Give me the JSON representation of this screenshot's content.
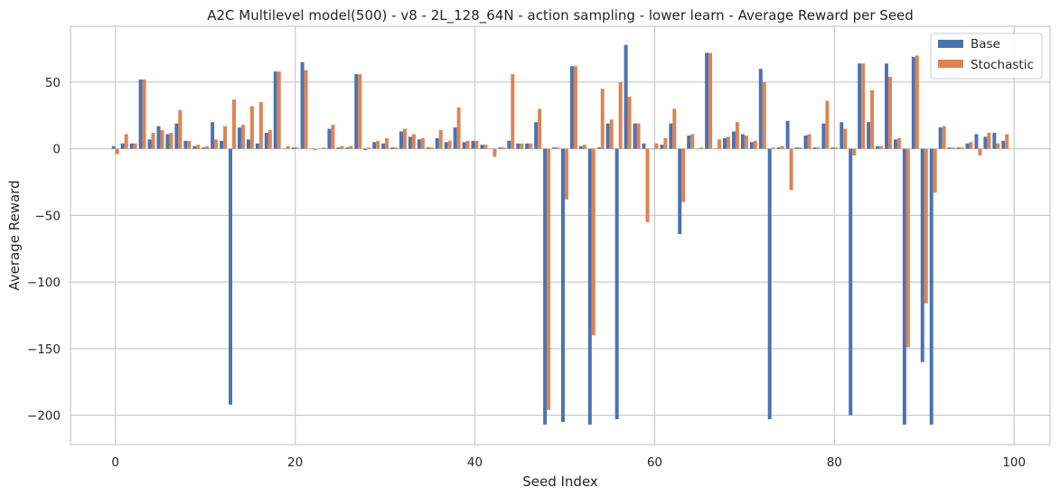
{
  "chart_data": {
    "type": "bar",
    "title": "A2C Multilevel model(500) - v8 - 2L_128_64N - action sampling - lower learn - Average Reward per Seed",
    "xlabel": "Seed Index",
    "ylabel": "Average Reward",
    "xlim": [
      -5,
      104
    ],
    "ylim": [
      -222,
      92
    ],
    "xticks": [
      0,
      20,
      40,
      60,
      80,
      100
    ],
    "yticks": [
      -200,
      -150,
      -100,
      -50,
      0,
      50
    ],
    "grid": true,
    "legend_position": "top-right",
    "colors": {
      "Base": "#4c72b0",
      "Stochastic": "#dd8452"
    },
    "series": [
      {
        "name": "Base",
        "values": [
          2,
          4,
          4,
          52,
          7,
          17,
          11,
          19,
          6,
          2,
          1,
          20,
          6,
          -192,
          16,
          7,
          4,
          12,
          58,
          0,
          1,
          65,
          0,
          0,
          15,
          1,
          1,
          56,
          -1,
          5,
          4,
          1,
          13,
          9,
          7,
          1,
          8,
          5,
          16,
          5,
          6,
          3,
          0,
          1,
          6,
          4,
          4,
          20,
          -207,
          1,
          -205,
          62,
          2,
          -207,
          1,
          19,
          -203,
          78,
          19,
          4,
          0,
          3,
          19,
          -64,
          10,
          0,
          72,
          0,
          8,
          13,
          11,
          5,
          60,
          -203,
          1,
          21,
          1,
          10,
          1,
          19,
          1,
          20,
          -200,
          64,
          20,
          2,
          64,
          7,
          -207,
          69,
          -160,
          -207,
          16,
          1,
          1,
          4,
          11,
          9,
          12,
          6
        ],
        "_c": [
          "0",
          "1",
          "2",
          "3",
          "4",
          "5",
          "6",
          "7",
          "8",
          "9",
          "10",
          "11",
          "12",
          "13",
          "14",
          "15",
          "16",
          "17",
          "18",
          "19",
          "20",
          "21",
          "22",
          "23",
          "24",
          "25",
          "26",
          "27",
          "28",
          "29",
          "30",
          "31",
          "32",
          "33",
          "34",
          "35",
          "36",
          "37",
          "38",
          "39",
          "40",
          "41",
          "42",
          "43",
          "44",
          "45",
          "46",
          "47",
          "48",
          "49",
          "50",
          "51",
          "52",
          "53",
          "54",
          "55",
          "56",
          "57",
          "58",
          "59",
          "60",
          "61",
          "62",
          "63",
          "64",
          "65",
          "66",
          "67",
          "68",
          "69",
          "70",
          "71",
          "72",
          "73",
          "74",
          "75",
          "76",
          "77",
          "78",
          "79",
          "80",
          "81",
          "82",
          "83",
          "84",
          "85",
          "86",
          "87",
          "88",
          "89",
          "90",
          "91",
          "92",
          "93",
          "94",
          "95",
          "96",
          "97",
          "98",
          "99"
        ]
      },
      {
        "name": "Stochastic",
        "values": [
          -4,
          11,
          4,
          52,
          12,
          14,
          12,
          29,
          6,
          3,
          2,
          7,
          17,
          37,
          18,
          32,
          35,
          14,
          58,
          2,
          1,
          59,
          -1,
          1,
          18,
          2,
          2,
          56,
          1,
          6,
          8,
          1,
          15,
          11,
          8,
          1,
          14,
          6,
          31,
          6,
          6,
          3,
          -6,
          1,
          56,
          4,
          4,
          30,
          -196,
          1,
          -38,
          62,
          3,
          -140,
          45,
          22,
          50,
          39,
          19,
          -55,
          4,
          8,
          30,
          -40,
          11,
          1,
          72,
          7,
          9,
          20,
          10,
          6,
          50,
          1,
          2,
          -31,
          1,
          11,
          1,
          36,
          1,
          15,
          -5,
          64,
          44,
          2,
          54,
          8,
          -149,
          70,
          -116,
          -33,
          17,
          1,
          1,
          5,
          -5,
          12,
          4,
          11
        ]
      }
    ]
  }
}
